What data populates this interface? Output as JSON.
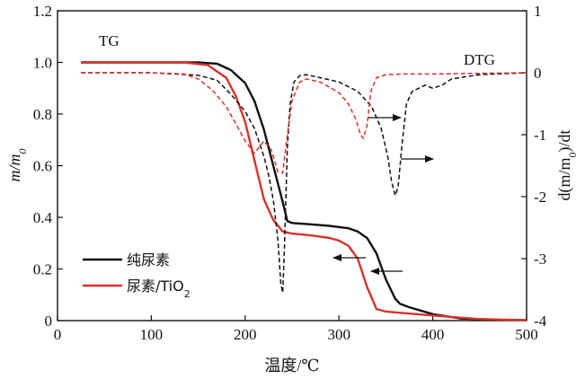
{
  "chart_data": {
    "type": "line",
    "title": "",
    "xlabel": "温度/℃",
    "ylabel": "m/m0",
    "y2label": "d(m/m0)/dt",
    "xlim": [
      0,
      500
    ],
    "ylim": [
      0,
      1.2
    ],
    "y2lim": [
      -4,
      1
    ],
    "x_ticks": [
      "0",
      "100",
      "200",
      "300",
      "400",
      "500"
    ],
    "y_ticks": [
      "0",
      "0.2",
      "0.4",
      "0.6",
      "0.8",
      "1.0",
      "1.2"
    ],
    "y2_ticks": [
      "1",
      "0",
      "-1",
      "-2",
      "-3",
      "-4"
    ],
    "annotations": [
      "TG",
      "DTG"
    ],
    "legend": [
      "纯尿素",
      "尿素/TiO2"
    ],
    "colors": {
      "pure": "#111111",
      "tio2": "#d8322a"
    },
    "series": [
      {
        "name": "纯尿素",
        "kind": "TG",
        "axis": "left",
        "x": [
          25,
          100,
          150,
          170,
          185,
          200,
          210,
          220,
          230,
          240,
          245,
          250,
          270,
          290,
          310,
          320,
          330,
          340,
          350,
          360,
          365,
          375,
          400,
          430,
          470,
          500
        ],
        "values": [
          1.0,
          1.0,
          1.0,
          0.995,
          0.97,
          0.92,
          0.85,
          0.74,
          0.6,
          0.46,
          0.385,
          0.378,
          0.373,
          0.367,
          0.358,
          0.345,
          0.32,
          0.26,
          0.16,
          0.085,
          0.065,
          0.052,
          0.025,
          0.008,
          0.003,
          0.002
        ]
      },
      {
        "name": "尿素/TiO2",
        "kind": "TG",
        "axis": "left",
        "x": [
          25,
          100,
          135,
          160,
          180,
          190,
          200,
          210,
          220,
          230,
          240,
          250,
          270,
          290,
          300,
          310,
          320,
          330,
          340,
          350,
          400,
          450,
          500
        ],
        "values": [
          1.0,
          1.0,
          1.0,
          0.99,
          0.94,
          0.87,
          0.77,
          0.62,
          0.47,
          0.39,
          0.345,
          0.337,
          0.33,
          0.32,
          0.31,
          0.29,
          0.24,
          0.13,
          0.045,
          0.035,
          0.02,
          0.006,
          0.002
        ]
      },
      {
        "name": "纯尿素",
        "kind": "DTG",
        "axis": "right",
        "x": [
          25,
          100,
          150,
          170,
          185,
          200,
          210,
          220,
          225,
          230,
          235,
          238,
          240,
          242,
          245,
          248,
          252,
          258,
          265,
          280,
          300,
          320,
          335,
          345,
          352,
          356,
          360,
          363,
          367,
          372,
          378,
          385,
          392,
          400,
          410,
          420,
          450,
          500
        ],
        "values": [
          0.0,
          0.0,
          -0.04,
          -0.12,
          -0.35,
          -0.62,
          -0.9,
          -1.35,
          -1.65,
          -2.05,
          -2.7,
          -3.4,
          -3.55,
          -2.8,
          -1.2,
          -0.5,
          -0.15,
          -0.05,
          -0.03,
          -0.08,
          -0.15,
          -0.3,
          -0.55,
          -0.9,
          -1.35,
          -1.75,
          -1.98,
          -1.85,
          -1.2,
          -0.5,
          -0.3,
          -0.25,
          -0.2,
          -0.25,
          -0.2,
          -0.1,
          -0.03,
          0.0
        ]
      },
      {
        "name": "尿素/TiO2",
        "kind": "DTG",
        "axis": "right",
        "x": [
          25,
          100,
          135,
          150,
          165,
          180,
          190,
          200,
          210,
          220,
          228,
          235,
          240,
          245,
          250,
          258,
          265,
          280,
          300,
          310,
          318,
          323,
          326,
          330,
          334,
          340,
          350,
          370,
          400,
          450,
          500
        ],
        "values": [
          0.0,
          0.0,
          -0.02,
          -0.1,
          -0.28,
          -0.55,
          -0.82,
          -1.1,
          -1.3,
          -1.1,
          -1.25,
          -1.6,
          -1.62,
          -1.0,
          -0.45,
          -0.15,
          -0.1,
          -0.15,
          -0.32,
          -0.5,
          -0.75,
          -1.0,
          -1.06,
          -0.85,
          -0.3,
          -0.08,
          -0.03,
          -0.02,
          -0.02,
          -0.01,
          0.0
        ]
      }
    ]
  }
}
